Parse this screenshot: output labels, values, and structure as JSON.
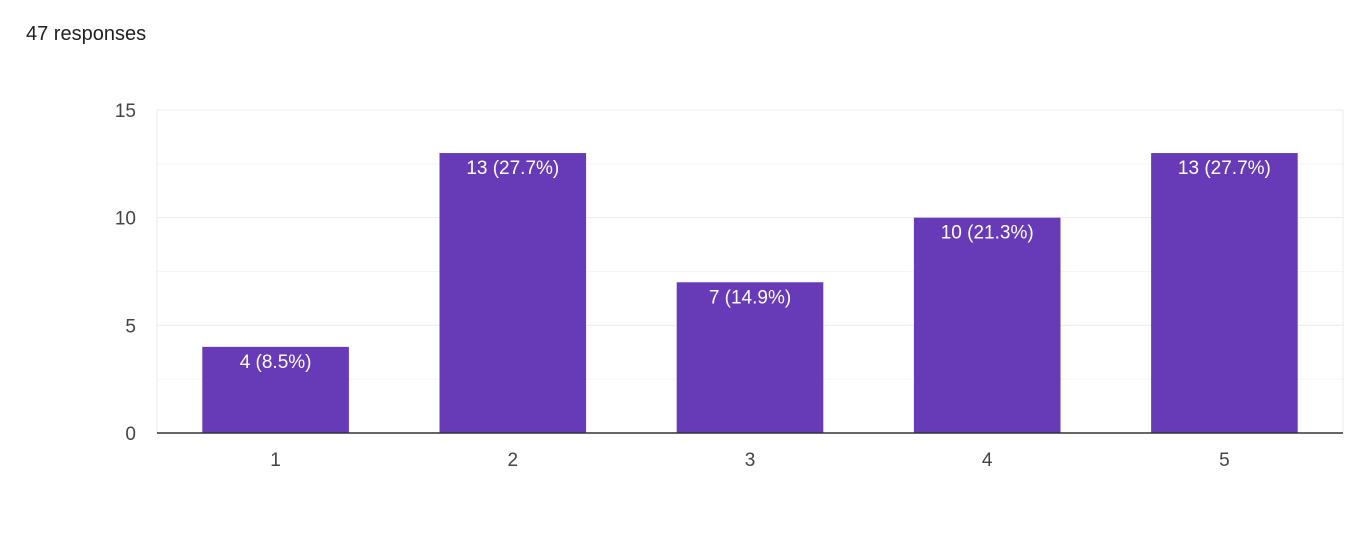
{
  "header": {
    "responses_label": "47 responses"
  },
  "colors": {
    "bar": "#673ab7",
    "gridline": "#ebebeb",
    "minor_gridline": "#f5f5f5",
    "axis": "#333333",
    "tick_text": "#444444",
    "data_label_text": "#ffffff"
  },
  "chart_data": {
    "type": "bar",
    "categories": [
      "1",
      "2",
      "3",
      "4",
      "5"
    ],
    "values": [
      4,
      13,
      7,
      10,
      13
    ],
    "data_labels": [
      "4 (8.5%)",
      "13 (27.7%)",
      "7 (14.9%)",
      "10 (21.3%)",
      "13 (27.7%)"
    ],
    "yticks": [
      0,
      5,
      10,
      15
    ],
    "ylim": [
      0,
      15
    ],
    "grid": true,
    "title": "",
    "xlabel": "",
    "ylabel": ""
  }
}
